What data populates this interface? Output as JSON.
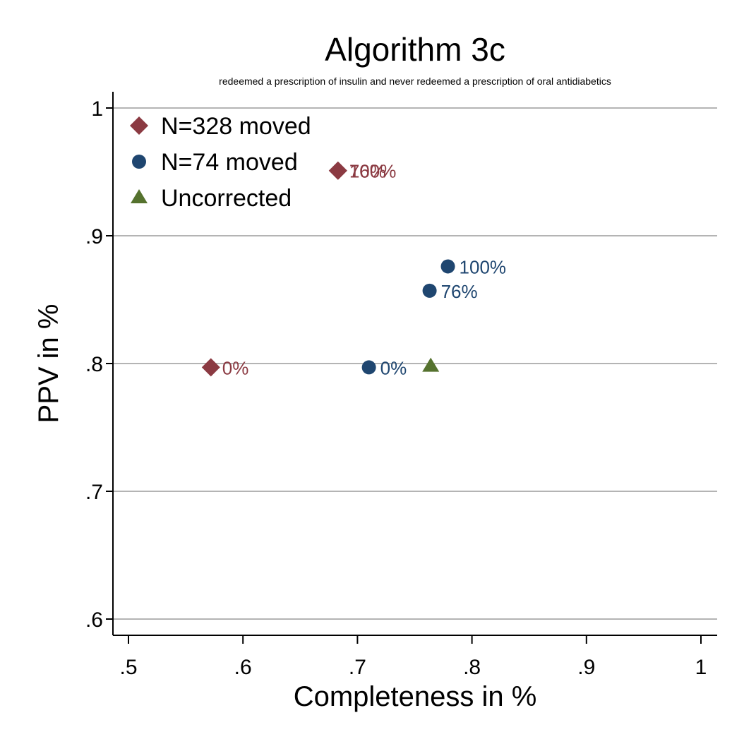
{
  "chart_data": {
    "type": "scatter",
    "title": "Algorithm 3c",
    "subtitle": "redeemed a prescription of insulin and never redeemed a prescription of oral antidiabetics",
    "xlabel": "Completeness in %",
    "ylabel": "PPV in %",
    "xlim": [
      0.5,
      1.0
    ],
    "ylim": [
      0.6,
      1.0
    ],
    "xticks": [
      {
        "value": 0.5,
        "label": ".5"
      },
      {
        "value": 0.6,
        "label": ".6"
      },
      {
        "value": 0.7,
        "label": ".7"
      },
      {
        "value": 0.8,
        "label": ".8"
      },
      {
        "value": 0.9,
        "label": ".9"
      },
      {
        "value": 1.0,
        "label": "1"
      }
    ],
    "yticks": [
      {
        "value": 0.6,
        "label": ".6"
      },
      {
        "value": 0.7,
        "label": ".7"
      },
      {
        "value": 0.8,
        "label": ".8"
      },
      {
        "value": 0.9,
        "label": ".9"
      },
      {
        "value": 1.0,
        "label": "1"
      }
    ],
    "grid": "horizontal",
    "legend_position": "top-left",
    "series": [
      {
        "name": "N=328 moved",
        "marker": "diamond",
        "color": "#8b3a42",
        "points": [
          {
            "x": 0.572,
            "y": 0.797,
            "label": "0%"
          },
          {
            "x": 0.683,
            "y": 0.951,
            "label": "76%"
          },
          {
            "x": 0.683,
            "y": 0.951,
            "label": "100%"
          }
        ]
      },
      {
        "name": "N=74 moved",
        "marker": "circle",
        "color": "#1f4670",
        "points": [
          {
            "x": 0.71,
            "y": 0.797,
            "label": "0%"
          },
          {
            "x": 0.763,
            "y": 0.857,
            "label": "76%"
          },
          {
            "x": 0.779,
            "y": 0.876,
            "label": "100%"
          }
        ]
      },
      {
        "name": "Uncorrected",
        "marker": "triangle",
        "color": "#55722e",
        "points": [
          {
            "x": 0.764,
            "y": 0.798,
            "label": ""
          }
        ]
      }
    ]
  }
}
